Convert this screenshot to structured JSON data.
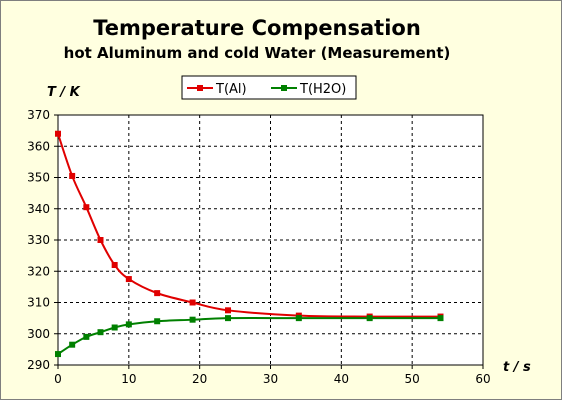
{
  "chart_data": {
    "type": "line",
    "title": "Temperature Compensation",
    "subtitle": "hot Aluminum and cold Water (Measurement)",
    "xlabel": "t / s",
    "ylabel": "T / K",
    "xlim": [
      0,
      60
    ],
    "ylim": [
      290,
      370
    ],
    "xticks": [
      0,
      10,
      20,
      30,
      40,
      50,
      60
    ],
    "yticks": [
      290,
      300,
      310,
      320,
      330,
      340,
      350,
      360,
      370
    ],
    "grid": true,
    "legend_position": "top-right",
    "colors": {
      "background": "#ffffe0",
      "plot_area": "#ffffff",
      "al_series": "#e00000",
      "water_series": "#008000",
      "grid": "#000000"
    },
    "series": [
      {
        "name": "T(Al)",
        "color": "#e00000",
        "x": [
          0,
          2,
          4,
          6,
          8,
          10,
          14,
          19,
          24,
          34,
          44,
          54
        ],
        "y": [
          364,
          350.5,
          340.5,
          330,
          322,
          317.5,
          313,
          310,
          307.5,
          305.8,
          305.5,
          305.5
        ]
      },
      {
        "name": "T(H2O)",
        "color": "#008000",
        "x": [
          0,
          2,
          4,
          6,
          8,
          10,
          14,
          19,
          24,
          34,
          44,
          54
        ],
        "y": [
          293.5,
          296.5,
          299,
          300.5,
          302,
          303,
          304,
          304.5,
          305,
          305,
          305,
          305
        ]
      }
    ]
  }
}
